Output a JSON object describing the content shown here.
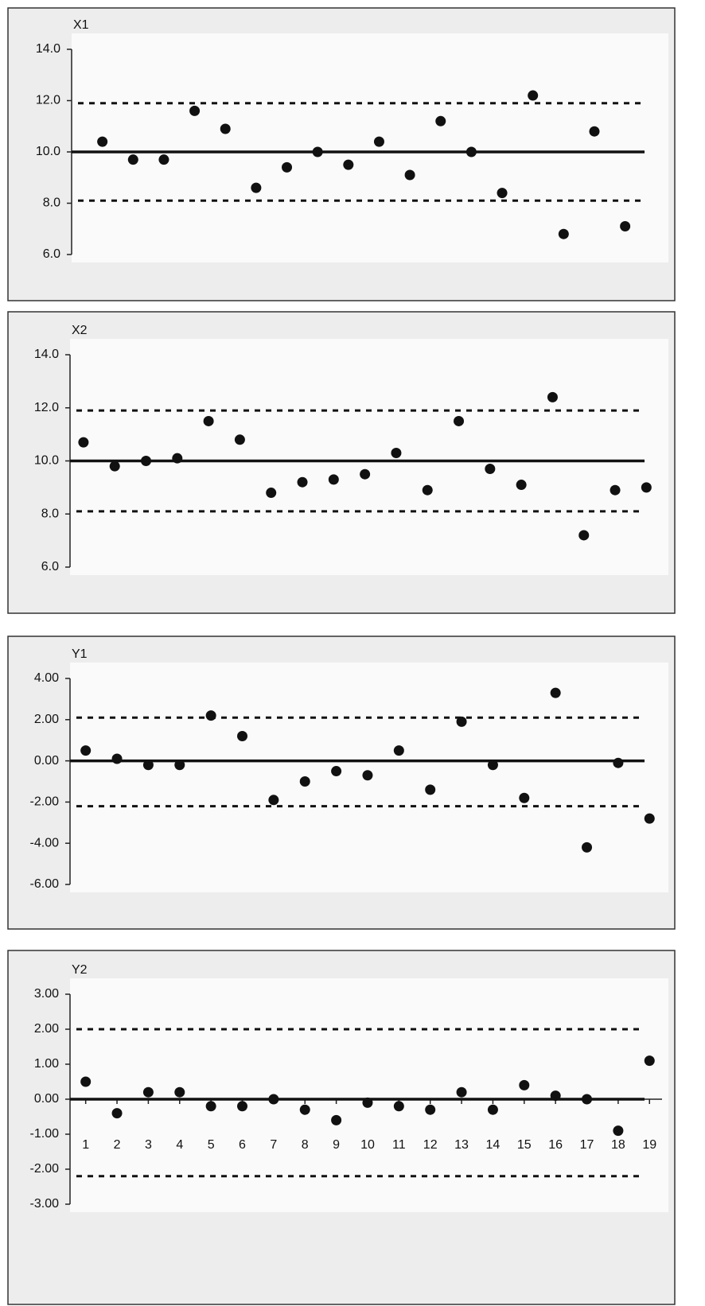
{
  "chart_data": [
    {
      "type": "scatter",
      "title": "X1",
      "color": "#111111",
      "values": [
        10.4,
        9.7,
        9.7,
        11.6,
        10.9,
        8.6,
        9.4,
        10.0,
        9.5,
        10.4,
        9.1,
        11.2,
        10.0,
        8.4,
        12.2,
        6.8,
        10.8,
        7.1
      ],
      "center": 10.0,
      "ucl": 11.9,
      "lcl": 8.1,
      "xlim": [
        0,
        19.2
      ],
      "ylim": [
        6,
        14
      ],
      "yticks": [
        {
          "value": 6,
          "label": "6.0"
        },
        {
          "value": 8,
          "label": "8.0"
        },
        {
          "value": 10,
          "label": "10.0"
        },
        {
          "value": 12,
          "label": "12.0"
        },
        {
          "value": 14,
          "label": "14.0"
        }
      ]
    },
    {
      "type": "scatter",
      "title": "X2",
      "color": "#111111",
      "values": [
        10.7,
        9.8,
        10.0,
        10.1,
        11.5,
        10.8,
        8.8,
        9.2,
        9.3,
        9.5,
        10.3,
        8.9,
        11.5,
        9.7,
        9.1,
        12.4,
        7.2,
        8.9,
        9.0
      ],
      "center": 10.0,
      "ucl": 11.9,
      "lcl": 8.1,
      "xlim": [
        0.57,
        19.5
      ],
      "ylim": [
        6,
        14
      ],
      "yticks": [
        {
          "value": 6,
          "label": "6.0"
        },
        {
          "value": 8,
          "label": "8.0"
        },
        {
          "value": 10,
          "label": "10.0"
        },
        {
          "value": 12,
          "label": "12.0"
        },
        {
          "value": 14,
          "label": "14.0"
        }
      ]
    },
    {
      "type": "scatter",
      "title": "Y1",
      "color": "#111111",
      "values": [
        0.5,
        0.1,
        -0.2,
        -0.2,
        2.2,
        1.2,
        -1.9,
        -1.0,
        -0.5,
        -0.7,
        0.5,
        -1.4,
        1.9,
        -0.2,
        -1.8,
        3.3,
        -4.2,
        -0.1,
        -2.8
      ],
      "center": 0,
      "ucl": 2.1,
      "lcl": -2.2,
      "xlim": [
        0.5,
        19.4
      ],
      "ylim": [
        -6,
        4
      ],
      "yticks": [
        {
          "value": -6,
          "label": "-6.00"
        },
        {
          "value": -4,
          "label": "-4.00"
        },
        {
          "value": -2,
          "label": "-2.00"
        },
        {
          "value": 0,
          "label": "0.00"
        },
        {
          "value": 2,
          "label": "2.00"
        },
        {
          "value": 4,
          "label": "4.00"
        }
      ]
    },
    {
      "type": "scatter",
      "title": "Y2",
      "color": "#111111",
      "values": [
        0.5,
        -0.4,
        0.2,
        0.2,
        -0.2,
        -0.2,
        0.0,
        -0.3,
        -0.6,
        -0.1,
        -0.2,
        -0.3,
        0.2,
        -0.3,
        0.4,
        0.1,
        0.0,
        -0.9,
        1.1
      ],
      "center": 0,
      "ucl": 2.0,
      "lcl": -2.2,
      "xlim": [
        0.5,
        19.4
      ],
      "ylim": [
        -3,
        3
      ],
      "xticks": [
        1,
        2,
        3,
        4,
        5,
        6,
        7,
        8,
        9,
        10,
        11,
        12,
        13,
        14,
        15,
        16,
        17,
        18,
        19
      ],
      "yticks": [
        {
          "value": -3,
          "label": "-3.00"
        },
        {
          "value": -2,
          "label": "-2.00"
        },
        {
          "value": -1,
          "label": "-1.00"
        },
        {
          "value": 0,
          "label": "0.00"
        },
        {
          "value": 1,
          "label": "1.00"
        },
        {
          "value": 2,
          "label": "2.00"
        },
        {
          "value": 3,
          "label": "3.00"
        }
      ]
    }
  ]
}
